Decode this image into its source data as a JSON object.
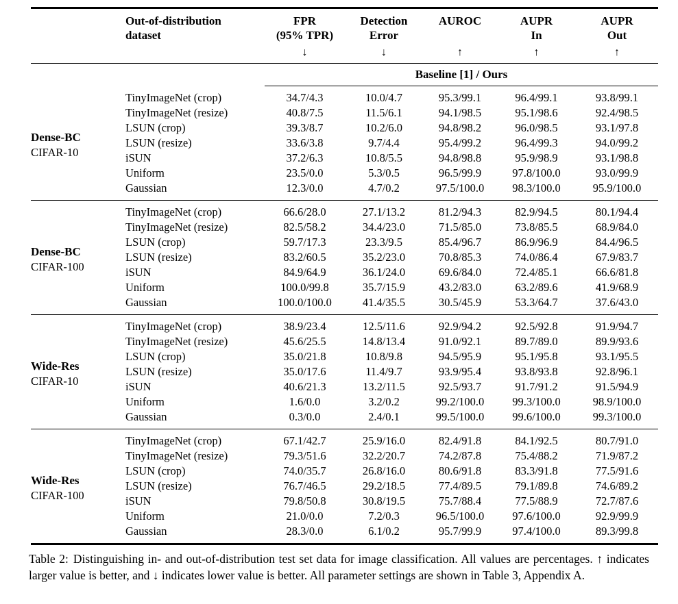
{
  "page": {
    "background": "#ffffff",
    "text_color": "#000000"
  },
  "table": {
    "header": {
      "dataset_label_line1": "Out-of-distribution",
      "dataset_label_line2": "dataset",
      "metric_columns": [
        {
          "line1": "FPR",
          "line2": "(95% TPR)",
          "arrow": "↓"
        },
        {
          "line1": "Detection",
          "line2": "Error",
          "arrow": "↓"
        },
        {
          "line1": "AUROC",
          "line2": "",
          "arrow": "↑"
        },
        {
          "line1": "AUPR",
          "line2": "In",
          "arrow": "↑"
        },
        {
          "line1": "AUPR",
          "line2": "Out",
          "arrow": "↑"
        }
      ],
      "subheader": "Baseline [1] / Ours"
    },
    "groups": [
      {
        "model": "Dense-BC",
        "train_dataset": "CIFAR-10",
        "rows": [
          {
            "ood_dataset": "TinyImageNet (crop)",
            "values": [
              "34.7/4.3",
              "10.0/4.7",
              "95.3/99.1",
              "96.4/99.1",
              "93.8/99.1"
            ]
          },
          {
            "ood_dataset": "TinyImageNet (resize)",
            "values": [
              "40.8/7.5",
              "11.5/6.1",
              "94.1/98.5",
              "95.1/98.6",
              "92.4/98.5"
            ]
          },
          {
            "ood_dataset": "LSUN (crop)",
            "values": [
              "39.3/8.7",
              "10.2/6.0",
              "94.8/98.2",
              "96.0/98.5",
              "93.1/97.8"
            ]
          },
          {
            "ood_dataset": "LSUN (resize)",
            "values": [
              "33.6/3.8",
              "9.7/4.4",
              "95.4/99.2",
              "96.4/99.3",
              "94.0/99.2"
            ]
          },
          {
            "ood_dataset": "iSUN",
            "values": [
              "37.2/6.3",
              "10.8/5.5",
              "94.8/98.8",
              "95.9/98.9",
              "93.1/98.8"
            ]
          },
          {
            "ood_dataset": "Uniform",
            "values": [
              "23.5/0.0",
              "5.3/0.5",
              "96.5/99.9",
              "97.8/100.0",
              "93.0/99.9"
            ]
          },
          {
            "ood_dataset": "Gaussian",
            "values": [
              "12.3/0.0",
              "4.7/0.2",
              "97.5/100.0",
              "98.3/100.0",
              "95.9/100.0"
            ]
          }
        ]
      },
      {
        "model": "Dense-BC",
        "train_dataset": "CIFAR-100",
        "rows": [
          {
            "ood_dataset": "TinyImageNet (crop)",
            "values": [
              "66.6/28.0",
              "27.1/13.2",
              "81.2/94.3",
              "82.9/94.5",
              "80.1/94.4"
            ]
          },
          {
            "ood_dataset": "TinyImageNet (resize)",
            "values": [
              "82.5/58.2",
              "34.4/23.0",
              "71.5/85.0",
              "73.8/85.5",
              "68.9/84.0"
            ]
          },
          {
            "ood_dataset": "LSUN (crop)",
            "values": [
              "59.7/17.3",
              "23.3/9.5",
              "85.4/96.7",
              "86.9/96.9",
              "84.4/96.5"
            ]
          },
          {
            "ood_dataset": "LSUN (resize)",
            "values": [
              "83.2/60.5",
              "35.2/23.0",
              "70.8/85.3",
              "74.0/86.4",
              "67.9/83.7"
            ]
          },
          {
            "ood_dataset": "iSUN",
            "values": [
              "84.9/64.9",
              "36.1/24.0",
              "69.6/84.0",
              "72.4/85.1",
              "66.6/81.8"
            ]
          },
          {
            "ood_dataset": "Uniform",
            "values": [
              "100.0/99.8",
              "35.7/15.9",
              "43.2/83.0",
              "63.2/89.6",
              "41.9/68.9"
            ]
          },
          {
            "ood_dataset": "Gaussian",
            "values": [
              "100.0/100.0",
              "41.4/35.5",
              "30.5/45.9",
              "53.3/64.7",
              "37.6/43.0"
            ]
          }
        ]
      },
      {
        "model": "Wide-Res",
        "train_dataset": "CIFAR-10",
        "rows": [
          {
            "ood_dataset": "TinyImageNet (crop)",
            "values": [
              "38.9/23.4",
              "12.5/11.6",
              "92.9/94.2",
              "92.5/92.8",
              "91.9/94.7"
            ]
          },
          {
            "ood_dataset": "TinyImageNet (resize)",
            "values": [
              "45.6/25.5",
              "14.8/13.4",
              "91.0/92.1",
              "89.7/89.0",
              "89.9/93.6"
            ]
          },
          {
            "ood_dataset": "LSUN (crop)",
            "values": [
              "35.0/21.8",
              "10.8/9.8",
              "94.5/95.9",
              "95.1/95.8",
              "93.1/95.5"
            ]
          },
          {
            "ood_dataset": "LSUN (resize)",
            "values": [
              "35.0/17.6",
              "11.4/9.7",
              "93.9/95.4",
              "93.8/93.8",
              "92.8/96.1"
            ]
          },
          {
            "ood_dataset": "iSUN",
            "values": [
              "40.6/21.3",
              "13.2/11.5",
              "92.5/93.7",
              "91.7/91.2",
              "91.5/94.9"
            ]
          },
          {
            "ood_dataset": "Uniform",
            "values": [
              "1.6/0.0",
              "3.2/0.2",
              "99.2/100.0",
              "99.3/100.0",
              "98.9/100.0"
            ]
          },
          {
            "ood_dataset": "Gaussian",
            "values": [
              "0.3/0.0",
              "2.4/0.1",
              "99.5/100.0",
              "99.6/100.0",
              "99.3/100.0"
            ]
          }
        ]
      },
      {
        "model": "Wide-Res",
        "train_dataset": "CIFAR-100",
        "rows": [
          {
            "ood_dataset": "TinyImageNet (crop)",
            "values": [
              "67.1/42.7",
              "25.9/16.0",
              "82.4/91.8",
              "84.1/92.5",
              "80.7/91.0"
            ]
          },
          {
            "ood_dataset": "TinyImageNet (resize)",
            "values": [
              "79.3/51.6",
              "32.2/20.7",
              "74.2/87.8",
              "75.4/88.2",
              "71.9/87.2"
            ]
          },
          {
            "ood_dataset": "LSUN (crop)",
            "values": [
              "74.0/35.7",
              "26.8/16.0",
              "80.6/91.8",
              "83.3/91.8",
              "77.5/91.6"
            ]
          },
          {
            "ood_dataset": "LSUN (resize)",
            "values": [
              "76.7/46.5",
              "29.2/18.5",
              "77.4/89.5",
              "79.1/89.8",
              "74.6/89.2"
            ]
          },
          {
            "ood_dataset": "iSUN",
            "values": [
              "79.8/50.8",
              "30.8/19.5",
              "75.7/88.4",
              "77.5/88.9",
              "72.7/87.6"
            ]
          },
          {
            "ood_dataset": "Uniform",
            "values": [
              "21.0/0.0",
              "7.2/0.3",
              "96.5/100.0",
              "97.6/100.0",
              "92.9/99.9"
            ]
          },
          {
            "ood_dataset": "Gaussian",
            "values": [
              "28.3/0.0",
              "6.1/0.2",
              "95.7/99.9",
              "97.4/100.0",
              "89.3/99.8"
            ]
          }
        ]
      }
    ]
  },
  "caption": {
    "label": "Table 2:",
    "text": "Distinguishing in- and out-of-distribution test set data for image classification.  All values are percentages. ↑ indicates larger value is better, and ↓ indicates lower value is better. All parameter settings are shown in Table 3, Appendix A."
  }
}
